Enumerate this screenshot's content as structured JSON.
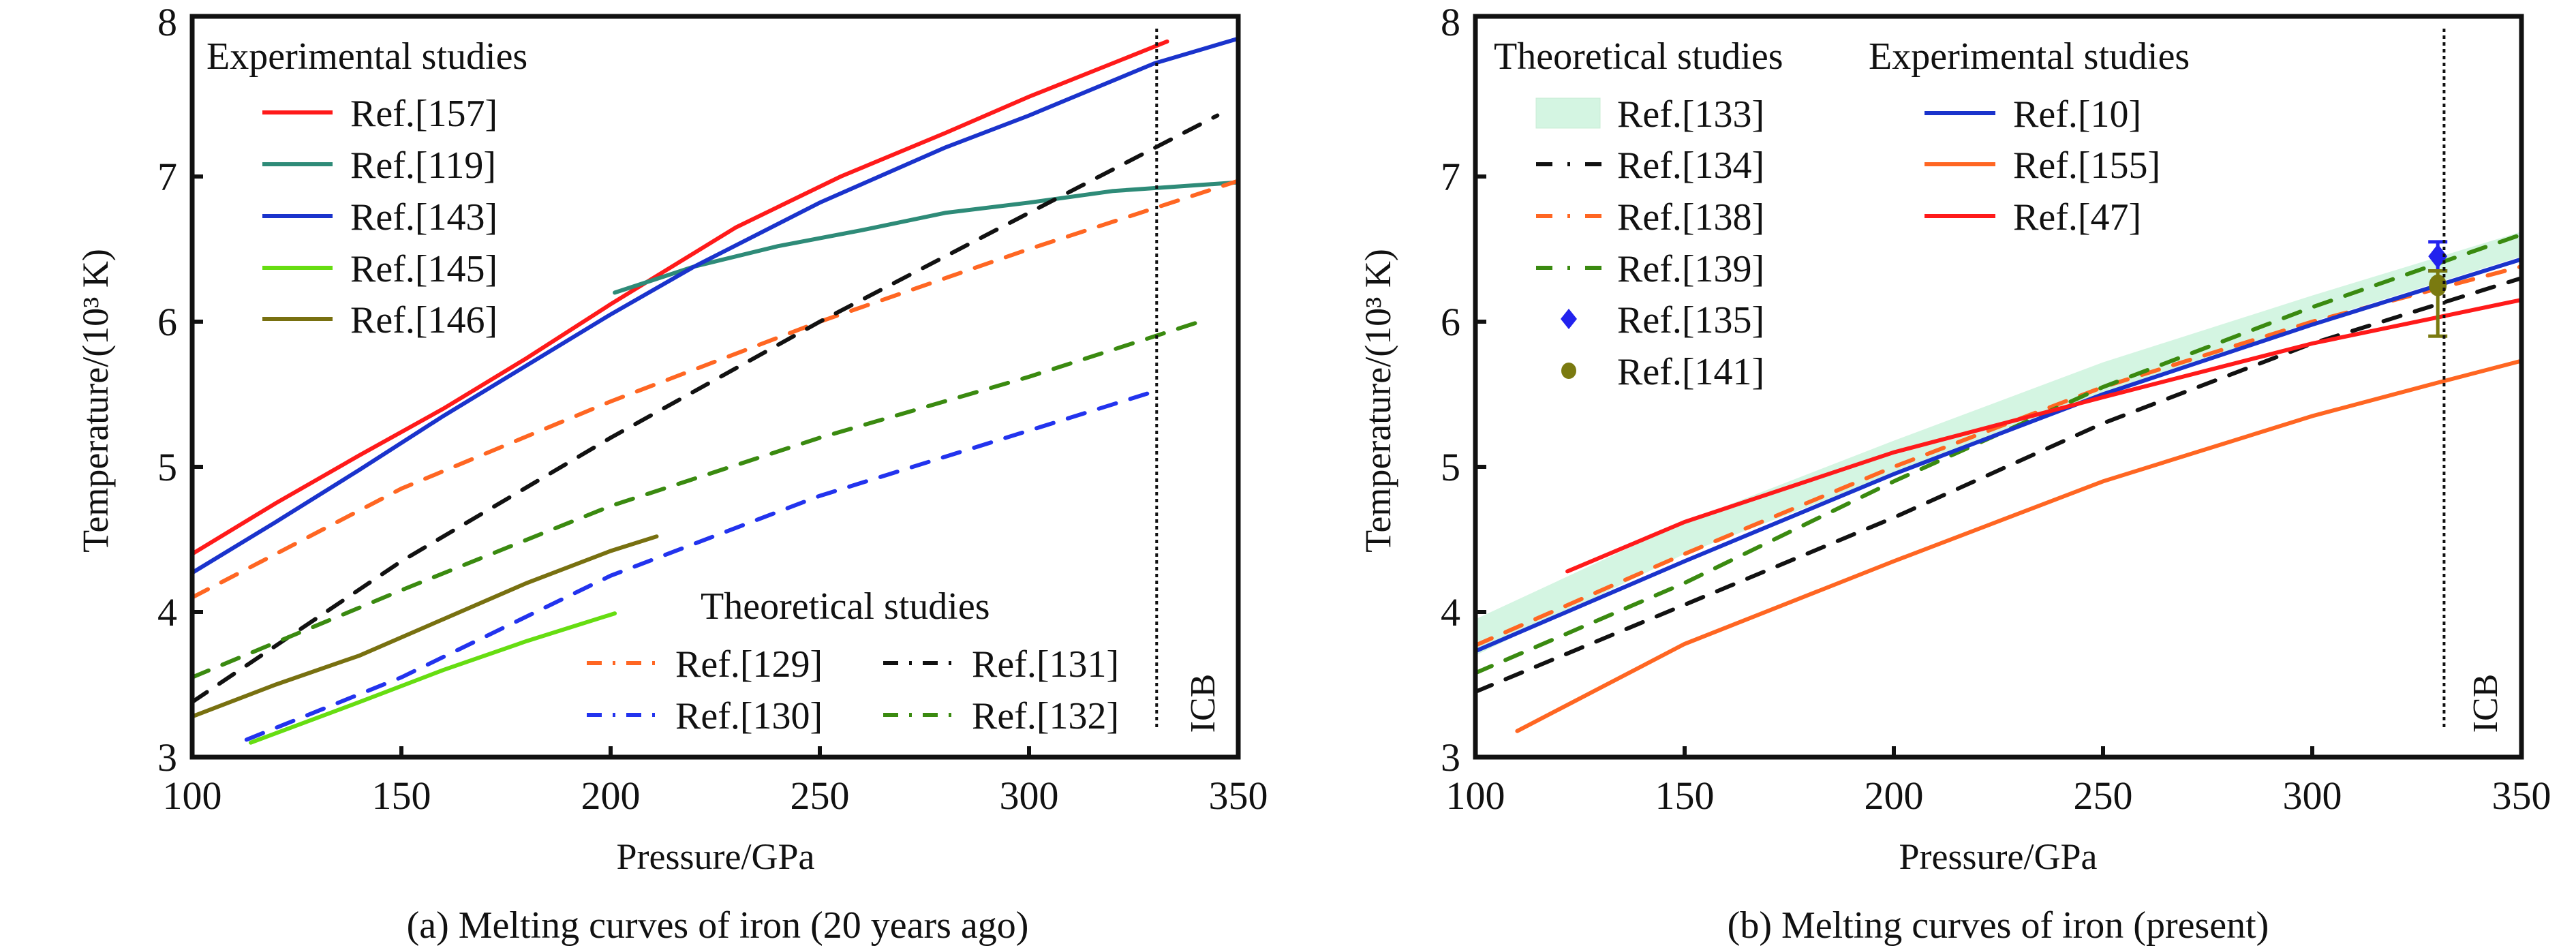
{
  "chart_data": [
    {
      "type": "line",
      "panel": "a",
      "caption": "(a) Melting curves of iron (20 years ago)",
      "xlabel": "Pressure/GPa",
      "ylabel": "Temperature/(10³ K)",
      "xlim": [
        100,
        350
      ],
      "ylim": [
        3,
        8.1
      ],
      "xticks": [
        100,
        150,
        200,
        250,
        300,
        350
      ],
      "yticks": [
        3,
        4,
        5,
        6,
        7,
        8
      ],
      "grid": false,
      "icb": {
        "x": 330.5,
        "label": "ICB"
      },
      "legends": [
        {
          "title": "Experimental studies",
          "placement": "top-left",
          "columns": 1
        },
        {
          "title": "Theoretical studies",
          "placement": "bottom-right",
          "columns": 2
        }
      ],
      "series": [
        {
          "name": "Ref.[157]",
          "group": "Experimental studies",
          "color": "#ff1a1a",
          "style": "solid",
          "x": [
            100,
            120,
            140,
            160,
            180,
            200,
            230,
            255,
            280,
            300,
            320,
            333
          ],
          "y": [
            4.4,
            4.75,
            5.08,
            5.4,
            5.75,
            6.12,
            6.65,
            7.0,
            7.3,
            7.55,
            7.78,
            7.93
          ]
        },
        {
          "name": "Ref.[119]",
          "group": "Experimental studies",
          "color": "#2e8b78",
          "style": "solid",
          "x": [
            201,
            220,
            240,
            260,
            280,
            300,
            320,
            350
          ],
          "y": [
            6.2,
            6.38,
            6.52,
            6.63,
            6.75,
            6.82,
            6.9,
            6.96
          ]
        },
        {
          "name": "Ref.[143]",
          "group": "Experimental studies",
          "color": "#1a33cc",
          "style": "solid",
          "x": [
            100,
            120,
            140,
            160,
            180,
            200,
            220,
            250,
            280,
            300,
            330,
            350
          ],
          "y": [
            4.27,
            4.62,
            4.98,
            5.35,
            5.7,
            6.05,
            6.38,
            6.82,
            7.2,
            7.42,
            7.78,
            7.95
          ]
        },
        {
          "name": "Ref.[145]",
          "group": "Experimental studies",
          "color": "#66dd11",
          "style": "solid",
          "x": [
            114,
            140,
            160,
            180,
            201
          ],
          "y": [
            3.1,
            3.38,
            3.6,
            3.8,
            3.99
          ]
        },
        {
          "name": "Ref.[146]",
          "group": "Experimental studies",
          "color": "#787010",
          "style": "solid",
          "x": [
            100,
            120,
            140,
            160,
            180,
            200,
            211
          ],
          "y": [
            3.28,
            3.5,
            3.7,
            3.95,
            4.2,
            4.42,
            4.52
          ]
        },
        {
          "name": "Ref.[129]",
          "group": "Theoretical studies",
          "color": "#ff6622",
          "style": "dashed",
          "x": [
            100,
            150,
            200,
            250,
            300,
            350
          ],
          "y": [
            4.1,
            4.85,
            5.45,
            6.0,
            6.5,
            6.97
          ]
        },
        {
          "name": "Ref.[130]",
          "group": "Theoretical studies",
          "color": "#2233ee",
          "style": "dashed",
          "x": [
            113,
            150,
            200,
            250,
            300,
            330
          ],
          "y": [
            3.12,
            3.55,
            4.25,
            4.8,
            5.25,
            5.52
          ]
        },
        {
          "name": "Ref.[131]",
          "group": "Theoretical studies",
          "color": "#111111",
          "style": "dashed",
          "x": [
            100,
            150,
            200,
            250,
            300,
            345
          ],
          "y": [
            3.38,
            4.35,
            5.2,
            6.0,
            6.75,
            7.42
          ]
        },
        {
          "name": "Ref.[132]",
          "group": "Theoretical studies",
          "color": "#3a8a10",
          "style": "dashed",
          "x": [
            100,
            150,
            200,
            250,
            300,
            343
          ],
          "y": [
            3.55,
            4.15,
            4.73,
            5.2,
            5.62,
            6.02
          ]
        }
      ]
    },
    {
      "type": "line",
      "panel": "b",
      "caption": "(b) Melting curves of iron (present)",
      "xlabel": "Pressure/GPa",
      "ylabel": "Temperature/(10³ K)",
      "xlim": [
        100,
        350
      ],
      "ylim": [
        3,
        8.1
      ],
      "xticks": [
        100,
        150,
        200,
        250,
        300,
        350
      ],
      "yticks": [
        3,
        4,
        5,
        6,
        7,
        8
      ],
      "grid": false,
      "icb": {
        "x": 331.5,
        "label": "ICB"
      },
      "legends": [
        {
          "title": "Theoretical studies",
          "placement": "top-left",
          "columns": 1
        },
        {
          "title": "Experimental studies",
          "placement": "top-center",
          "columns": 1
        }
      ],
      "band": {
        "name": "Ref.[133]",
        "group": "Theoretical studies",
        "color": "#d4f5e2",
        "x": [
          100,
          150,
          200,
          250,
          300,
          350
        ],
        "lower": [
          3.7,
          4.4,
          4.95,
          5.5,
          6.0,
          6.45
        ],
        "upper": [
          3.95,
          4.62,
          5.18,
          5.72,
          6.18,
          6.62
        ]
      },
      "series": [
        {
          "name": "Ref.[134]",
          "group": "Theoretical studies",
          "color": "#111111",
          "style": "dashed",
          "x": [
            100,
            150,
            200,
            250,
            300,
            350
          ],
          "y": [
            3.45,
            4.05,
            4.65,
            5.3,
            5.85,
            6.3
          ]
        },
        {
          "name": "Ref.[138]",
          "group": "Theoretical studies",
          "color": "#ff6622",
          "style": "dashed",
          "x": [
            100,
            150,
            200,
            250,
            300,
            350
          ],
          "y": [
            3.77,
            4.4,
            5.0,
            5.55,
            6.0,
            6.38
          ]
        },
        {
          "name": "Ref.[139]",
          "group": "Theoretical studies",
          "color": "#3a8a10",
          "style": "dashed",
          "x": [
            100,
            150,
            200,
            250,
            300,
            350
          ],
          "y": [
            3.58,
            4.2,
            4.9,
            5.55,
            6.1,
            6.6
          ]
        },
        {
          "name": "Ref.[10]",
          "group": "Experimental studies",
          "color": "#1a33cc",
          "style": "solid",
          "x": [
            100,
            150,
            200,
            250,
            300,
            350
          ],
          "y": [
            3.73,
            4.35,
            4.95,
            5.5,
            5.98,
            6.43
          ]
        },
        {
          "name": "Ref.[155]",
          "group": "Experimental studies",
          "color": "#ff6622",
          "style": "solid",
          "x": [
            110,
            150,
            200,
            250,
            300,
            330,
            350
          ],
          "y": [
            3.18,
            3.78,
            4.35,
            4.9,
            5.35,
            5.58,
            5.73
          ]
        },
        {
          "name": "Ref.[47]",
          "group": "Experimental studies",
          "color": "#ff1a1a",
          "style": "solid",
          "x": [
            122,
            150,
            200,
            250,
            300,
            350
          ],
          "y": [
            4.28,
            4.62,
            5.1,
            5.48,
            5.85,
            6.15
          ]
        }
      ],
      "points": [
        {
          "name": "Ref.[135]",
          "group": "Theoretical studies",
          "marker": "diamond",
          "color": "#2222ee",
          "x": 330,
          "y": 6.45,
          "err_low": 0.1,
          "err_high": 0.1
        },
        {
          "name": "Ref.[141]",
          "group": "Theoretical studies",
          "marker": "circle",
          "color": "#7a7a10",
          "x": 330,
          "y": 6.25,
          "err_low": 0.35,
          "err_high": 0.1
        }
      ]
    }
  ]
}
